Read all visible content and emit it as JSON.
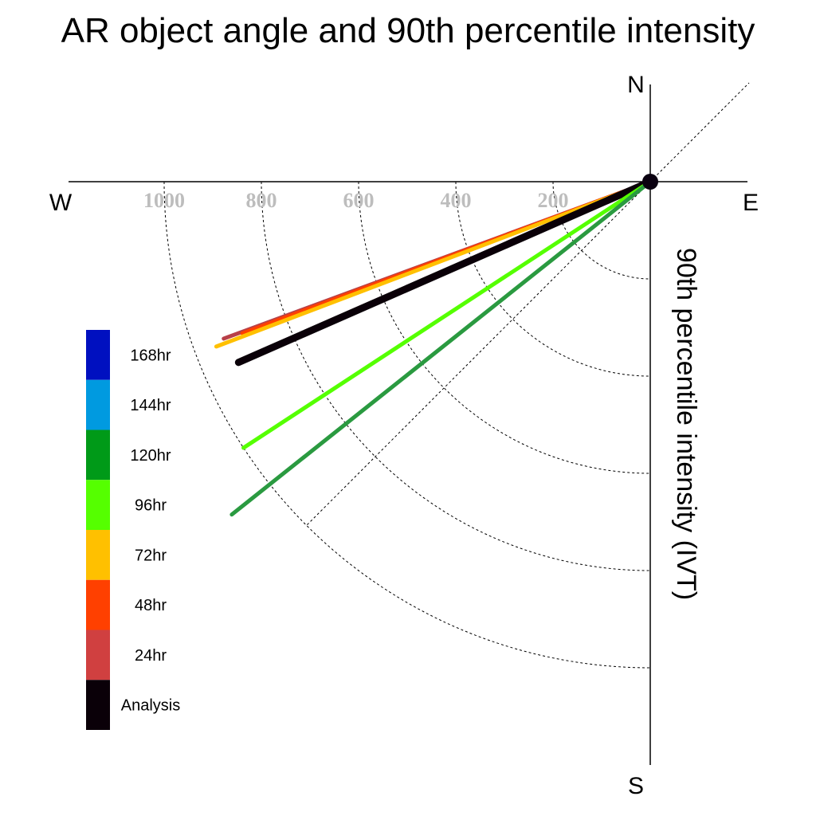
{
  "title": "AR object angle and 90th percentile intensity",
  "directions": {
    "north": "N",
    "south": "S",
    "east": "E",
    "west": "W"
  },
  "ylabel": "90th percentile intensity (IVT)",
  "chart_data": {
    "type": "polar-line",
    "title": "AR object angle and 90th percentile intensity",
    "radial_label": "90th percentile intensity (IVT)",
    "radial_ticks": [
      200,
      400,
      600,
      800,
      1000
    ],
    "radial_range": [
      0,
      1200
    ],
    "grid": true,
    "legend_placement": "left",
    "legend": [
      {
        "label": "168hr",
        "color": "#0010c0"
      },
      {
        "label": "144hr",
        "color": "#009ae0"
      },
      {
        "label": "120hr",
        "color": "#009a18"
      },
      {
        "label": "96hr",
        "color": "#55ff00"
      },
      {
        "label": "72hr",
        "color": "#ffc000"
      },
      {
        "label": "48hr",
        "color": "#ff4000"
      },
      {
        "label": "24hr",
        "color": "#d04040"
      },
      {
        "label": "Analysis",
        "color": "#0a0008"
      }
    ],
    "series": [
      {
        "name": "24hr",
        "angle_deg_from_west": 20.2,
        "intensity": 935,
        "color": "#b84048"
      },
      {
        "name": "48hr",
        "angle_deg_from_west": 20.4,
        "intensity": 895,
        "color": "#ff4000"
      },
      {
        "name": "72hr",
        "angle_deg_from_west": 20.8,
        "intensity": 955,
        "color": "#ffc000"
      },
      {
        "name": "Analysis",
        "angle_deg_from_west": 23.7,
        "intensity": 925,
        "color": "#0a0008"
      },
      {
        "name": "96hr",
        "angle_deg_from_west": 33.2,
        "intensity": 1000,
        "color": "#55ff00"
      },
      {
        "name": "120hr",
        "angle_deg_from_west": 38.5,
        "intensity": 1100,
        "color": "#2a9a40"
      }
    ]
  }
}
